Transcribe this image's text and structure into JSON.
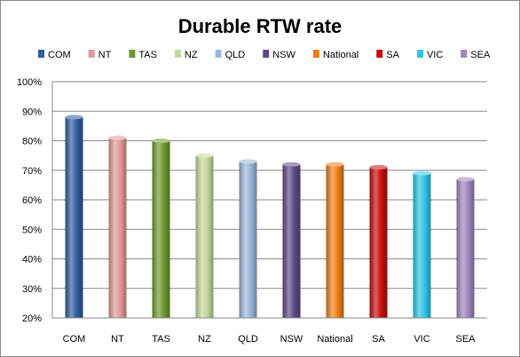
{
  "chart_data": {
    "type": "bar",
    "title": "Durable RTW rate",
    "xlabel": "",
    "ylabel": "",
    "ylim": [
      0.2,
      1.0
    ],
    "y_tick_values": [
      0.2,
      0.3,
      0.4,
      0.5,
      0.6,
      0.7,
      0.8,
      0.9,
      1.0
    ],
    "y_tick_labels": [
      "20%",
      "30%",
      "40%",
      "50%",
      "60%",
      "70%",
      "80%",
      "90%",
      "100%"
    ],
    "grid": true,
    "legend_position": "top",
    "categories": [
      "COM",
      "NT",
      "TAS",
      "NZ",
      "QLD",
      "NSW",
      "National",
      "SA",
      "VIC",
      "SEA"
    ],
    "values": [
      0.88,
      0.81,
      0.8,
      0.75,
      0.73,
      0.72,
      0.72,
      0.71,
      0.69,
      0.67
    ],
    "colors": [
      "#2e5e9e",
      "#e39a9a",
      "#6e9a2e",
      "#c3d99a",
      "#9ab6da",
      "#5e4a86",
      "#ee7d16",
      "#c60d0d",
      "#2ec6e6",
      "#9e86be"
    ]
  }
}
